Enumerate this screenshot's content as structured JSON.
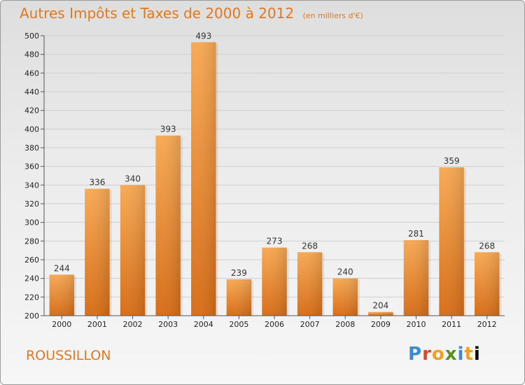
{
  "header": {
    "title": "Autres Impôts et Taxes de 2000 à 2012",
    "subtitle": "(en milliers d'€)"
  },
  "footer": {
    "city": "ROUSSILLON",
    "logo_letters": [
      "P",
      "r",
      "o",
      "x",
      "i",
      "t",
      "i"
    ]
  },
  "colors": {
    "accent": "#e0781e",
    "bar_light": "#f7a850",
    "bar_dark": "#d9711c"
  },
  "chart_data": {
    "type": "bar",
    "title": "Autres Impôts et Taxes de 2000 à 2012",
    "subtitle": "(en milliers d'€)",
    "categories": [
      "2000",
      "2001",
      "2002",
      "2003",
      "2004",
      "2005",
      "2006",
      "2007",
      "2008",
      "2009",
      "2010",
      "2011",
      "2012"
    ],
    "values": [
      244,
      336,
      340,
      393,
      493,
      239,
      273,
      268,
      240,
      204,
      281,
      359,
      268
    ],
    "ylim": [
      200,
      500
    ],
    "yticks": [
      200,
      220,
      240,
      260,
      280,
      300,
      320,
      340,
      360,
      380,
      400,
      420,
      440,
      460,
      480,
      500
    ],
    "grid": true
  }
}
